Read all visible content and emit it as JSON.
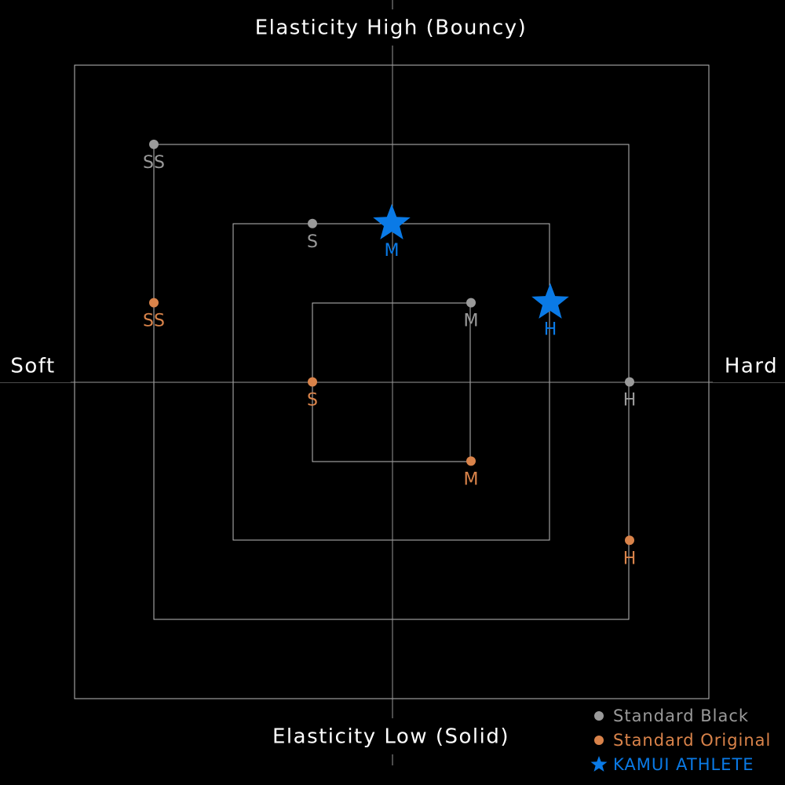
{
  "chart_data": {
    "type": "scatter",
    "top_label": "Elasticity High (Bouncy)",
    "bottom_label": "Elasticity Low (Solid)",
    "left_label": "Soft",
    "right_label": "Hard",
    "xlim": [
      -4,
      4
    ],
    "ylim": [
      -4,
      4
    ],
    "series": [
      {
        "name": "Standard Black",
        "color": "#9a9a9a",
        "marker": "circle",
        "x": [
          -3,
          -1,
          1,
          3
        ],
        "y": [
          3,
          2,
          1,
          0
        ],
        "labels": [
          "SS",
          "S",
          "M",
          "H"
        ]
      },
      {
        "name": "Standard Original",
        "color": "#d9834a",
        "marker": "circle",
        "x": [
          -3,
          -1,
          1,
          3
        ],
        "y": [
          1,
          0,
          -1,
          -2
        ],
        "labels": [
          "SS",
          "S",
          "M",
          "H"
        ]
      },
      {
        "name": "KAMUI ATHLETE",
        "color": "#0a7ae6",
        "marker": "star",
        "x": [
          0,
          2
        ],
        "y": [
          2,
          1
        ],
        "labels": [
          "M",
          "H"
        ]
      }
    ]
  }
}
